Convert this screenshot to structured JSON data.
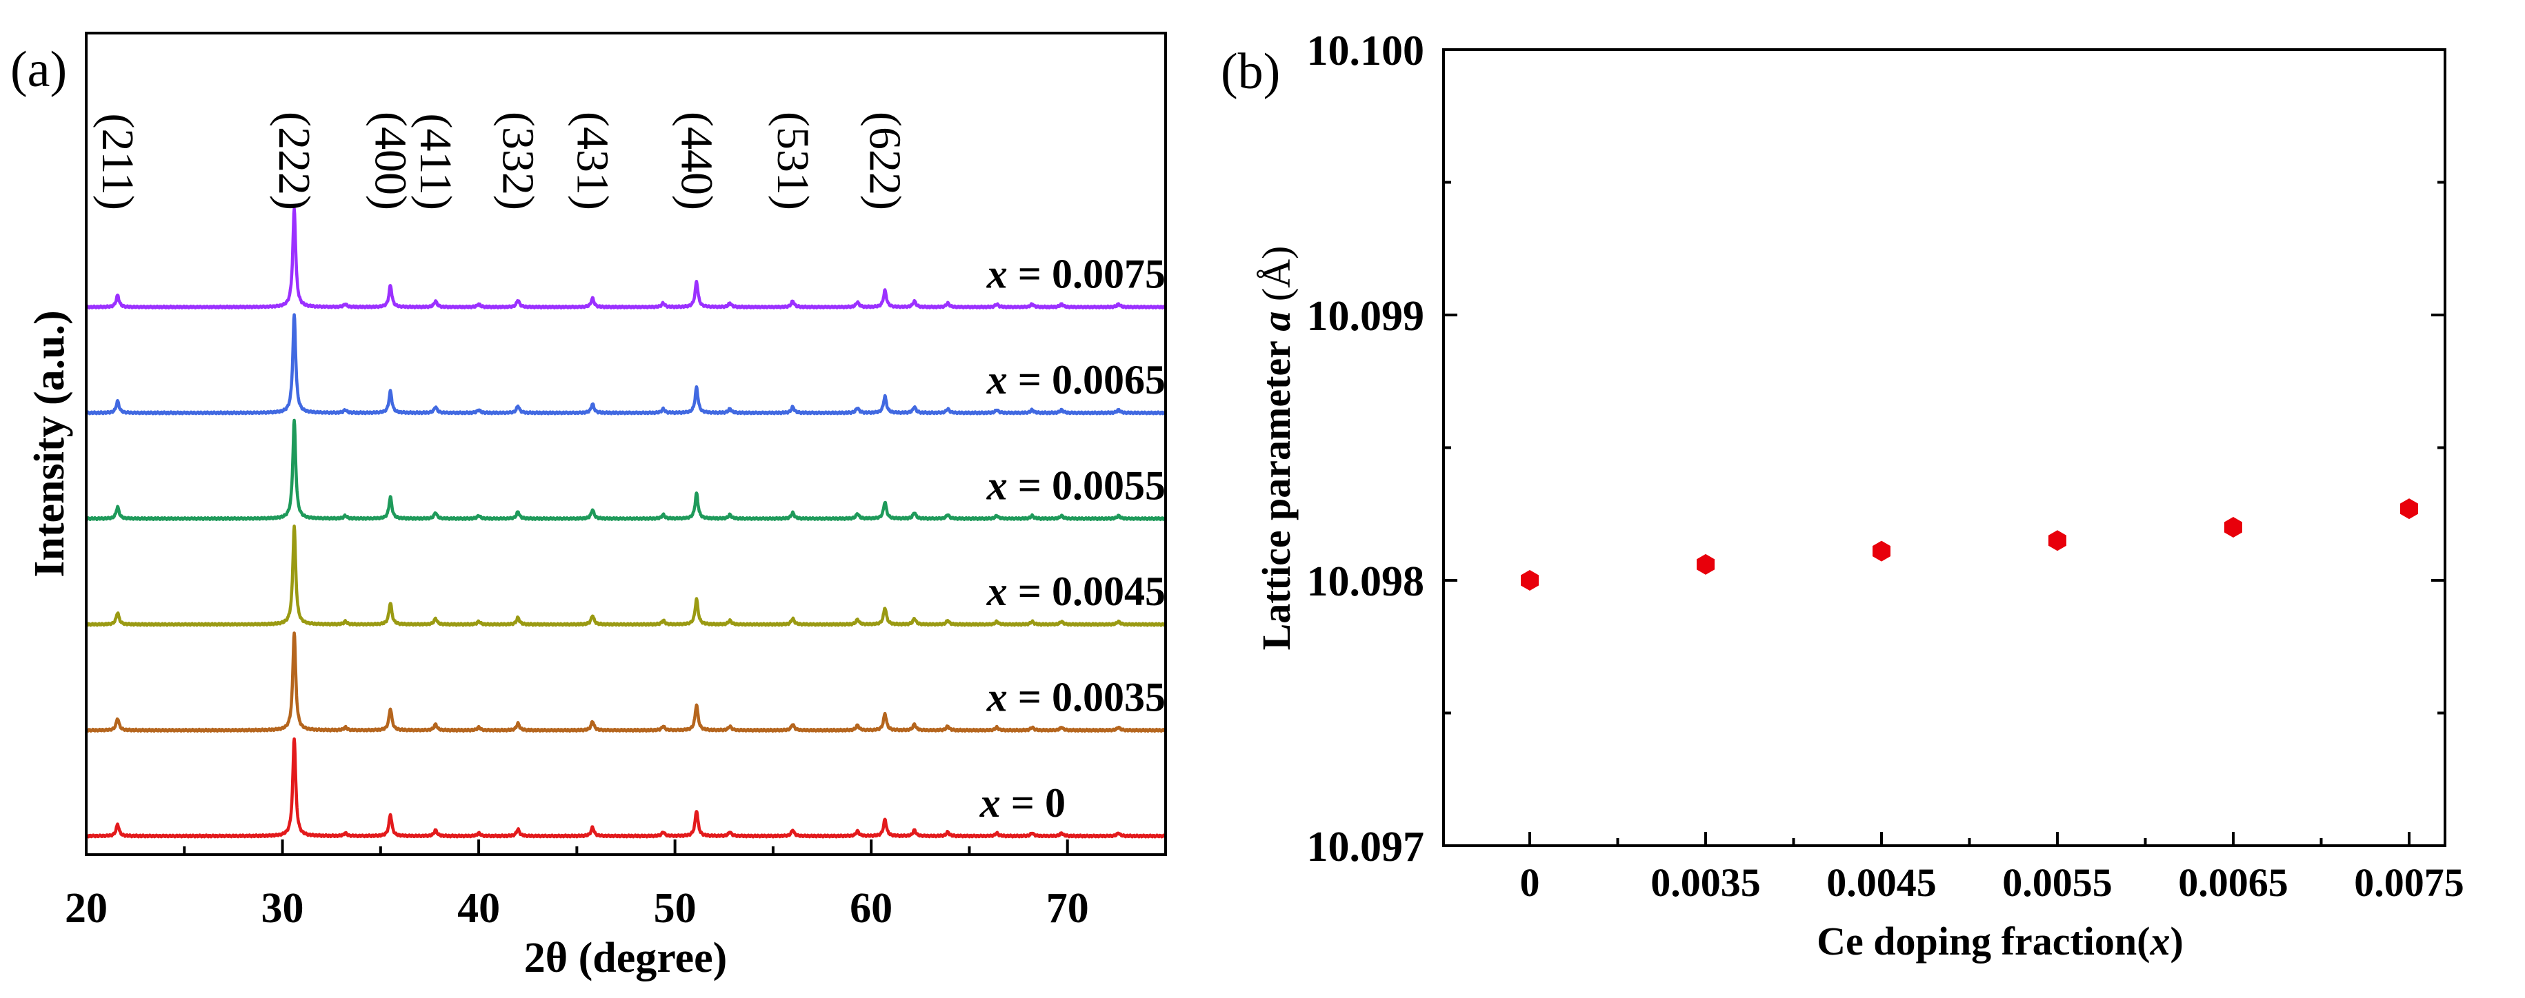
{
  "chart_data": [
    {
      "type": "line",
      "panel_label": "(a)",
      "xlabel": "2θ (degree)",
      "ylabel": "Intensity (a.u.)",
      "xlim": [
        20,
        75
      ],
      "x_ticks": [
        "20",
        "30",
        "40",
        "50",
        "60",
        "70"
      ],
      "y_ticks": [],
      "grid": false,
      "peak_labels": [
        {
          "label": "(211)",
          "two_theta": 21.6
        },
        {
          "label": "(222)",
          "two_theta": 30.6
        },
        {
          "label": "(400)",
          "two_theta": 35.5
        },
        {
          "label": "(411)",
          "two_theta": 37.8
        },
        {
          "label": "(332)",
          "two_theta": 42.0
        },
        {
          "label": "(431)",
          "two_theta": 45.8
        },
        {
          "label": "(440)",
          "two_theta": 51.1
        },
        {
          "label": "(531)",
          "two_theta": 56.0
        },
        {
          "label": "(622)",
          "two_theta": 60.7
        }
      ],
      "series": [
        {
          "name": "x = 0",
          "x_value": "0",
          "color": "#e31a1c",
          "offset": 0
        },
        {
          "name": "x = 0.0035",
          "x_value": "0.0035",
          "color": "#b5651d",
          "offset": 1
        },
        {
          "name": "x = 0.0045",
          "x_value": "0.0045",
          "color": "#9a9a12",
          "offset": 2
        },
        {
          "name": "x = 0.0055",
          "x_value": "0.0055",
          "color": "#1e9a5a",
          "offset": 3
        },
        {
          "name": "x = 0.0065",
          "x_value": "0.0065",
          "color": "#4169e1",
          "offset": 4
        },
        {
          "name": "x = 0.0075",
          "x_value": "0.0075",
          "color": "#9b30ff",
          "offset": 5
        }
      ],
      "peaks": [
        {
          "two_theta": 21.6,
          "rel": 0.12
        },
        {
          "two_theta": 30.6,
          "rel": 1.0
        },
        {
          "two_theta": 33.2,
          "rel": 0.03
        },
        {
          "two_theta": 35.5,
          "rel": 0.22
        },
        {
          "two_theta": 37.8,
          "rel": 0.06
        },
        {
          "two_theta": 40.0,
          "rel": 0.03
        },
        {
          "two_theta": 42.0,
          "rel": 0.07
        },
        {
          "two_theta": 45.8,
          "rel": 0.09
        },
        {
          "two_theta": 49.4,
          "rel": 0.04
        },
        {
          "two_theta": 51.1,
          "rel": 0.26
        },
        {
          "two_theta": 52.8,
          "rel": 0.04
        },
        {
          "two_theta": 56.0,
          "rel": 0.06
        },
        {
          "two_theta": 59.3,
          "rel": 0.05
        },
        {
          "two_theta": 60.7,
          "rel": 0.17
        },
        {
          "two_theta": 62.2,
          "rel": 0.06
        },
        {
          "two_theta": 63.9,
          "rel": 0.04
        },
        {
          "two_theta": 66.4,
          "rel": 0.03
        },
        {
          "two_theta": 68.2,
          "rel": 0.03
        },
        {
          "two_theta": 69.7,
          "rel": 0.03
        },
        {
          "two_theta": 72.6,
          "rel": 0.03
        }
      ]
    },
    {
      "type": "scatter",
      "panel_label": "(b)",
      "xlabel": "Ce doping fraction(x)",
      "ylabel": "Lattice parameter a (Å)",
      "categories": [
        "0",
        "0.0035",
        "0.0045",
        "0.0055",
        "0.0065",
        "0.0075"
      ],
      "values": [
        10.098,
        10.09806,
        10.09811,
        10.09815,
        10.0982,
        10.09827
      ],
      "ylim": [
        10.097,
        10.1
      ],
      "y_ticks": [
        "10.097",
        "10.098",
        "10.099",
        "10.100"
      ],
      "marker_color": "#e8000b",
      "grid": false
    }
  ]
}
